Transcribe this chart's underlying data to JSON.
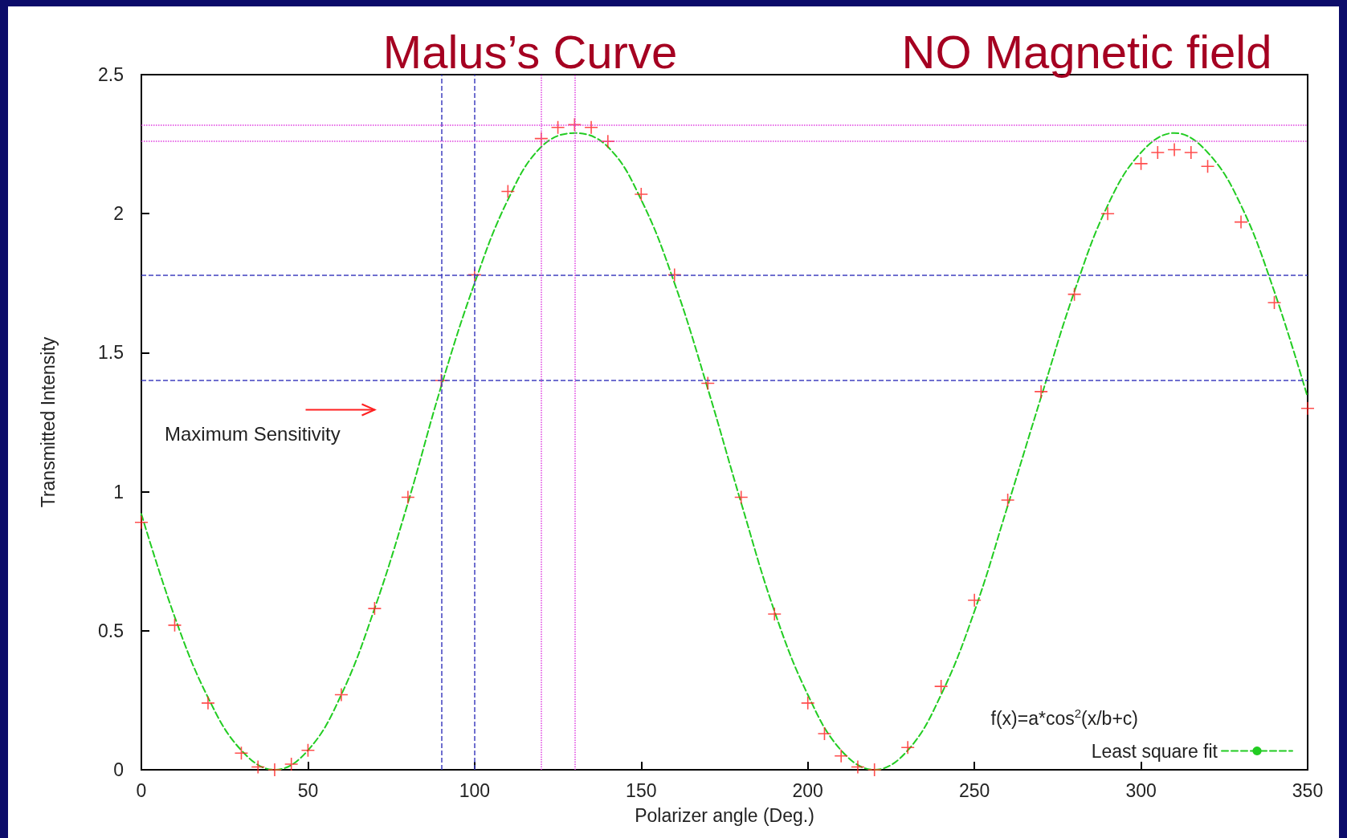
{
  "chart_data": {
    "type": "scatter",
    "title": "Malus’s Curve",
    "subtitle": "NO Magnetic field",
    "xlabel": "Polarizer angle (Deg.)",
    "ylabel": "Transmitted Intensity",
    "legend_title": "f(x)=a*cos$^{2}$(x/b+c)",
    "annotations": [
      "Maximum Sensitivity"
    ],
    "xlim": [
      0,
      350
    ],
    "xticks": [
      0,
      50,
      100,
      150,
      200,
      250,
      300,
      350
    ],
    "ylim": [
      0,
      2.5
    ],
    "yticks": [
      0,
      0.5,
      1,
      1.5,
      2,
      2.5
    ],
    "grid": false,
    "legend": "bottom right",
    "marker": "cross",
    "series": [
      {
        "color": "#ff2020",
        "x": [
          0,
          10,
          20,
          30,
          35,
          40,
          45,
          50,
          60,
          70,
          80,
          90,
          100,
          110,
          120,
          125,
          130,
          135,
          140,
          150,
          160,
          170,
          180,
          190,
          200,
          205,
          210,
          215,
          220,
          230,
          240,
          250,
          260,
          270,
          280,
          290,
          300,
          305,
          310,
          315,
          320,
          330,
          340,
          350
        ],
        "values": [
          0.89,
          0.52,
          0.24,
          0.06,
          0.01,
          0.0,
          0.02,
          0.07,
          0.27,
          0.58,
          0.98,
          1.4,
          1.78,
          2.08,
          2.27,
          2.31,
          2.32,
          2.31,
          2.26,
          2.07,
          1.78,
          1.39,
          0.98,
          0.56,
          0.24,
          0.13,
          0.05,
          0.01,
          0.0,
          0.08,
          0.3,
          0.61,
          0.97,
          1.36,
          1.71,
          2.0,
          2.18,
          2.22,
          2.23,
          2.22,
          2.17,
          1.97,
          1.68,
          1.3
        ]
      },
      {
        "type": "line",
        "name": "Least square fit",
        "color": "#22cc22",
        "line_style": "dashed",
        "marker": "none",
        "x": [
          0,
          10,
          20,
          30,
          40,
          50,
          60,
          70,
          80,
          90,
          100,
          110,
          120,
          130,
          140,
          150,
          160,
          170,
          180,
          190,
          200,
          210,
          220,
          230,
          240,
          250,
          260,
          270,
          280,
          290,
          300,
          310,
          320,
          330,
          340,
          350
        ],
        "values": [
          0.92,
          0.55,
          0.26,
          0.07,
          0.0,
          0.07,
          0.27,
          0.58,
          0.96,
          1.38,
          1.75,
          2.05,
          2.24,
          2.29,
          2.24,
          2.05,
          1.75,
          1.37,
          0.96,
          0.57,
          0.27,
          0.07,
          0.0,
          0.07,
          0.27,
          0.57,
          0.95,
          1.34,
          1.72,
          2.03,
          2.22,
          2.29,
          2.22,
          2.03,
          1.72,
          1.34
        ]
      }
    ],
    "ref_lines": [
      {
        "axis": "y",
        "value": 1.78,
        "color": "#4040c0",
        "line_style": "dashed"
      },
      {
        "axis": "y",
        "value": 1.4,
        "color": "#4040c0",
        "line_style": "dashed"
      },
      {
        "axis": "x",
        "value": 90,
        "color": "#4040c0",
        "line_style": "dashed"
      },
      {
        "axis": "x",
        "value": 100,
        "color": "#4040c0",
        "line_style": "dashed"
      },
      {
        "axis": "y",
        "value": 2.32,
        "color": "#e040e0",
        "line_style": "dotted"
      },
      {
        "axis": "y",
        "value": 2.26,
        "color": "#e040e0",
        "line_style": "dotted"
      },
      {
        "axis": "x",
        "value": 120,
        "color": "#e040e0",
        "line_style": "dotted"
      },
      {
        "axis": "x",
        "value": 130,
        "color": "#e040e0",
        "line_style": "dotted"
      }
    ]
  }
}
